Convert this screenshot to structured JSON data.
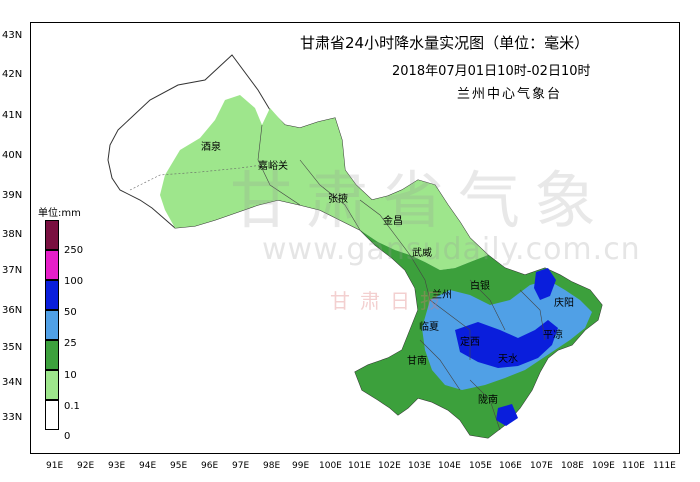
{
  "map": {
    "title": "甘肃省24小时降水量实况图（单位：毫米）",
    "subtitle": "2018年07月01日10时-02日10时",
    "organization": "兰州中心气象台",
    "lat_ticks": [
      "43N",
      "42N",
      "41N",
      "40N",
      "39N",
      "38N",
      "37N",
      "36N",
      "35N",
      "34N",
      "33N"
    ],
    "lon_ticks": [
      "91E",
      "92E",
      "93E",
      "94E",
      "95E",
      "96E",
      "97E",
      "98E",
      "99E",
      "100E",
      "101E",
      "102E",
      "103E",
      "104E",
      "105E",
      "106E",
      "107E",
      "108E",
      "109E",
      "110E",
      "111E"
    ],
    "cities": [
      "酒泉",
      "嘉峪关",
      "张掖",
      "金昌",
      "武威",
      "白银",
      "兰州",
      "临夏",
      "定西",
      "甘南",
      "天水",
      "陇南",
      "平凉",
      "庆阳"
    ],
    "watermark": {
      "chinese": "甘肃省气象",
      "url": "www.gansudaily.com.cn",
      "brand": "甘肃日报"
    }
  },
  "legend": {
    "unit": "单位:mm",
    "labels": [
      "250",
      "100",
      "50",
      "25",
      "10",
      "0.1",
      "0"
    ],
    "colors": [
      "#7a1040",
      "#e61ec8",
      "#0a1edc",
      "#50a0e6",
      "#3ca03c",
      "#9ee68c",
      "#ffffff"
    ]
  }
}
